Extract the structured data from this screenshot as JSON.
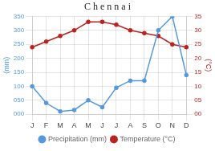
{
  "chart_data": {
    "type": "line",
    "title": "C h e n n a i",
    "categories": [
      "J",
      "F",
      "M",
      "A",
      "M",
      "J",
      "J",
      "A",
      "S",
      "O",
      "N",
      "D"
    ],
    "series": [
      {
        "name": "Precipitation (mm)",
        "color": "#5599dd",
        "marker": "circle",
        "line_style": "solid",
        "axis": "y",
        "values": [
          100,
          40,
          10,
          15,
          50,
          25,
          95,
          120,
          120,
          300,
          350,
          140
        ]
      },
      {
        "name": "Temperature (°C)",
        "color": "#bb2222",
        "marker": "circle",
        "line_style": "solid",
        "axis": "y2",
        "values": [
          24,
          26,
          28,
          30,
          33,
          33,
          32,
          30,
          29,
          28,
          25,
          24
        ]
      }
    ],
    "ylabel": "(mm)",
    "y2label": "(°C)",
    "ylim": [
      0,
      350
    ],
    "yticks": [
      {
        "value": 0,
        "label": "000"
      },
      {
        "value": 50,
        "label": "050"
      },
      100,
      150,
      200,
      250,
      300,
      350
    ],
    "y2lim": [
      0,
      35
    ],
    "y2ticks": [
      {
        "value": 0,
        "label": "00"
      },
      {
        "value": 5,
        "label": "05"
      },
      10,
      15,
      20,
      25,
      30,
      35
    ],
    "grid": true,
    "legend": "bottom"
  }
}
